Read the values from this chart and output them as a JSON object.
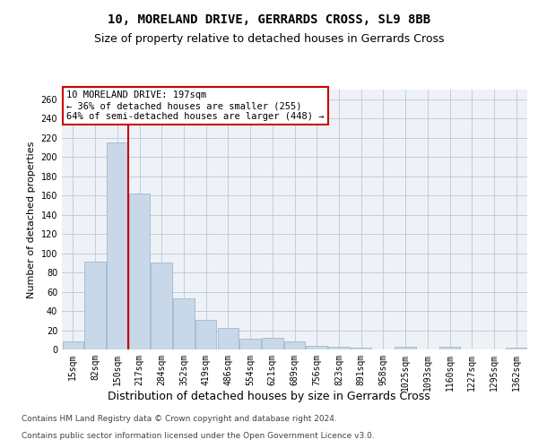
{
  "title1": "10, MORELAND DRIVE, GERRARDS CROSS, SL9 8BB",
  "title2": "Size of property relative to detached houses in Gerrards Cross",
  "xlabel": "Distribution of detached houses by size in Gerrards Cross",
  "ylabel": "Number of detached properties",
  "bar_labels": [
    "15sqm",
    "82sqm",
    "150sqm",
    "217sqm",
    "284sqm",
    "352sqm",
    "419sqm",
    "486sqm",
    "554sqm",
    "621sqm",
    "689sqm",
    "756sqm",
    "823sqm",
    "891sqm",
    "958sqm",
    "1025sqm",
    "1093sqm",
    "1160sqm",
    "1227sqm",
    "1295sqm",
    "1362sqm"
  ],
  "bar_values": [
    8,
    91,
    215,
    162,
    90,
    53,
    31,
    22,
    11,
    12,
    8,
    4,
    3,
    2,
    0,
    3,
    0,
    3,
    0,
    0,
    2
  ],
  "bar_color": "#c8d8e8",
  "bar_edge_color": "#a0b8cc",
  "vline_x": 2.5,
  "vline_color": "#cc0000",
  "annotation_line1": "10 MORELAND DRIVE: 197sqm",
  "annotation_line2": "← 36% of detached houses are smaller (255)",
  "annotation_line3": "64% of semi-detached houses are larger (448) →",
  "annotation_box_color": "white",
  "annotation_box_edge": "#cc0000",
  "ylim": [
    0,
    270
  ],
  "yticks": [
    0,
    20,
    40,
    60,
    80,
    100,
    120,
    140,
    160,
    180,
    200,
    220,
    240,
    260
  ],
  "footer_line1": "Contains HM Land Registry data © Crown copyright and database right 2024.",
  "footer_line2": "Contains public sector information licensed under the Open Government Licence v3.0.",
  "bg_color": "#eef2f7",
  "grid_color": "#b8c8d8",
  "title1_fontsize": 10,
  "title2_fontsize": 9,
  "xlabel_fontsize": 9,
  "ylabel_fontsize": 8,
  "tick_fontsize": 7,
  "annotation_fontsize": 7.5,
  "footer_fontsize": 6.5
}
